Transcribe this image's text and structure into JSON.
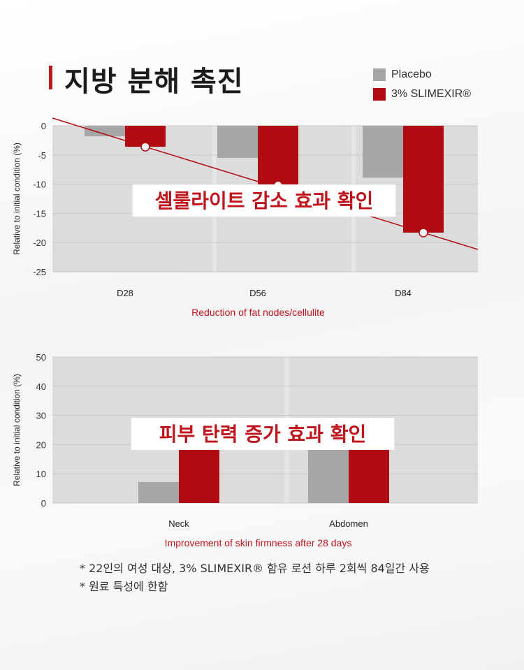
{
  "title": "지방 분해 촉진",
  "legend": {
    "placebo": "Placebo",
    "product": "3% SLIMEXIR®"
  },
  "colors": {
    "placebo": "#a6a6a6",
    "product": "#b00a12",
    "accent": "#c0141c",
    "plot_bg": "#dcdcdc"
  },
  "chart_data": [
    {
      "type": "bar",
      "title": "",
      "ylabel": "Relative to initial condition (%)",
      "xlabel": "Reduction of fat nodes/cellulite",
      "categories": [
        "D28",
        "D56",
        "D84"
      ],
      "series": [
        {
          "name": "Placebo",
          "values": [
            -1.8,
            -5.5,
            -8.9
          ]
        },
        {
          "name": "3% SLIMEXIR®",
          "values": [
            -3.6,
            -10.2,
            -18.3
          ]
        }
      ],
      "ylim": [
        -25,
        0
      ],
      "yticks": [
        0,
        -5,
        -10,
        -15,
        -20,
        -25
      ],
      "annotation": "셀룰라이트 감소 효과 확인",
      "grid": true
    },
    {
      "type": "bar",
      "title": "",
      "ylabel": "Relative to initial condition (%)",
      "xlabel": "Improvement of skin firmness after 28 days",
      "categories": [
        "Neck",
        "Abdomen"
      ],
      "series": [
        {
          "name": "Placebo",
          "values": [
            7.2,
            20
          ]
        },
        {
          "name": "3% SLIMEXIR®",
          "values": [
            20,
            29
          ]
        }
      ],
      "ylim": [
        0,
        50
      ],
      "yticks": [
        0,
        10,
        20,
        30,
        40,
        50
      ],
      "annotation": "피부 탄력 증가 효과 확인",
      "grid": true
    }
  ],
  "footnotes": [
    "* 22인의 여성 대상, 3% SLIMEXIR® 함유 로션 하루 2회씩 84일간 사용",
    "* 원료 특성에 한함"
  ]
}
